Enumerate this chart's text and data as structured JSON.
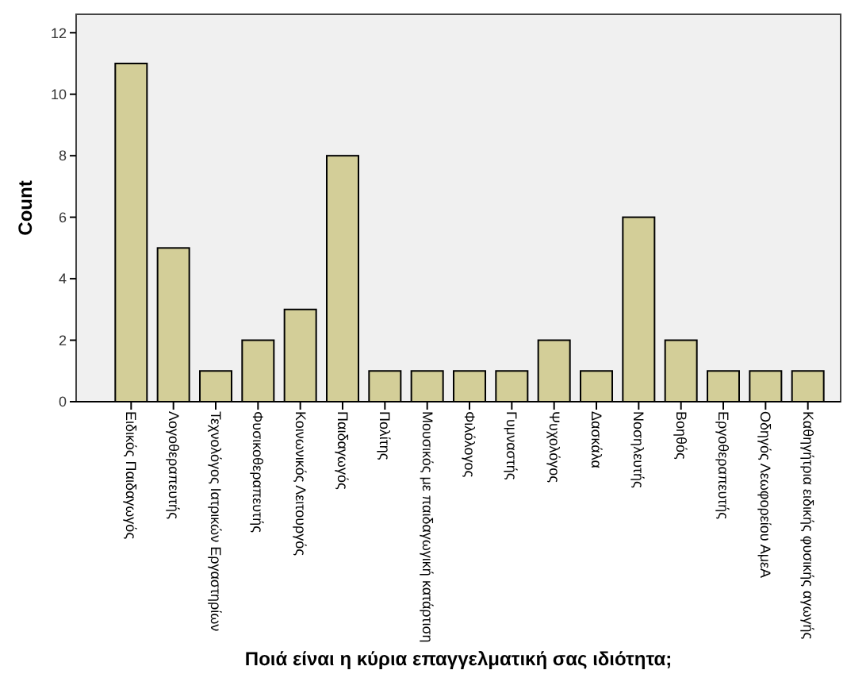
{
  "chart_data": {
    "type": "bar",
    "xlabel": "Ποιά είναι η κύρια επαγγελματική σας ιδιότητα;",
    "ylabel": "Count",
    "categories": [
      "Ειδικός Παιδαγωγός",
      "Λογοθεραπευτής",
      "Τεχνολόγος Ιατρικών Εργαστηρίων",
      "Φυσικοθεραπευτής",
      "Κοινωνικός Λειτουργός",
      "Παιδαγωγός",
      "Πολίτης",
      "Μουσικός με παιδαγωγική κατάρτιση",
      "Φιλόλογος",
      "Γυμναστής",
      "Ψυχολόγος",
      "Δασκάλα",
      "Νοσηλευτής",
      "Βοηθός",
      "Εργοθεραπευτής",
      "Οδηγός Λεωφορείου ΑμεΑ",
      "Καθηγήτρια ειδικής φυσικής αγωγής"
    ],
    "values": [
      11,
      5,
      1,
      2,
      3,
      8,
      1,
      1,
      1,
      1,
      2,
      1,
      6,
      2,
      1,
      1,
      1
    ],
    "color": "#d3ce98",
    "ylim": [
      0,
      12.6
    ],
    "yticks": [
      0,
      2,
      4,
      6,
      8,
      10,
      12
    ],
    "grid": false
  }
}
